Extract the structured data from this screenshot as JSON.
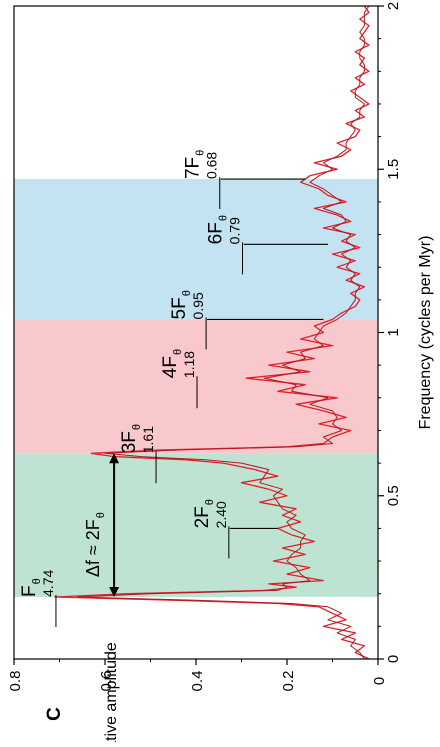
{
  "panel_label": "C",
  "chart_data": {
    "type": "line",
    "orientation": "rotated-90",
    "xlabel": "Frequency (cycles per Myr)",
    "ylabel": "Relative amplitude",
    "xlim": [
      0,
      2
    ],
    "ylim": [
      0,
      0.8
    ],
    "xticks": [
      "0",
      "0.5",
      "1",
      "1.5",
      "2"
    ],
    "xtick_values": [
      0,
      0.5,
      1,
      1.5,
      2
    ],
    "yticks": [
      "0",
      "0.2",
      "0.4",
      "0.6",
      "0.8"
    ],
    "ytick_values": [
      0,
      0.2,
      0.4,
      0.6,
      0.8
    ],
    "grid": false,
    "bands": [
      {
        "x0": 0.19,
        "x1": 0.63,
        "color": "#bfe3d3"
      },
      {
        "x0": 0.63,
        "x1": 1.04,
        "color": "#f9c8cc"
      },
      {
        "x0": 1.04,
        "x1": 1.47,
        "color": "#c3e3f3"
      }
    ],
    "series": [
      {
        "color": "#e0202a",
        "x": [
          0.0,
          0.02,
          0.04,
          0.06,
          0.08,
          0.1,
          0.12,
          0.14,
          0.16,
          0.17,
          0.18,
          0.19,
          0.2,
          0.21,
          0.22,
          0.23,
          0.24,
          0.26,
          0.28,
          0.3,
          0.32,
          0.34,
          0.36,
          0.38,
          0.4,
          0.42,
          0.44,
          0.46,
          0.48,
          0.5,
          0.52,
          0.54,
          0.56,
          0.58,
          0.6,
          0.61,
          0.62,
          0.63,
          0.64,
          0.65,
          0.66,
          0.68,
          0.7,
          0.72,
          0.74,
          0.76,
          0.78,
          0.8,
          0.82,
          0.84,
          0.86,
          0.88,
          0.9,
          0.92,
          0.94,
          0.96,
          0.98,
          1.0,
          1.02,
          1.04,
          1.06,
          1.08,
          1.1,
          1.12,
          1.14,
          1.16,
          1.18,
          1.2,
          1.22,
          1.24,
          1.26,
          1.28,
          1.3,
          1.32,
          1.34,
          1.36,
          1.38,
          1.4,
          1.42,
          1.44,
          1.46,
          1.48,
          1.5,
          1.52,
          1.54,
          1.56,
          1.58,
          1.6,
          1.62,
          1.64,
          1.66,
          1.68,
          1.7,
          1.72,
          1.74,
          1.76,
          1.78,
          1.8,
          1.82,
          1.84,
          1.86,
          1.88,
          1.9,
          1.92,
          1.94,
          1.96,
          1.98,
          2.0
        ],
        "values": [
          0.02,
          0.05,
          0.03,
          0.08,
          0.05,
          0.12,
          0.07,
          0.1,
          0.13,
          0.22,
          0.45,
          0.71,
          0.55,
          0.25,
          0.18,
          0.24,
          0.12,
          0.2,
          0.15,
          0.23,
          0.16,
          0.21,
          0.14,
          0.19,
          0.22,
          0.17,
          0.21,
          0.18,
          0.26,
          0.2,
          0.24,
          0.3,
          0.22,
          0.27,
          0.34,
          0.42,
          0.58,
          0.63,
          0.48,
          0.2,
          0.12,
          0.1,
          0.06,
          0.13,
          0.07,
          0.12,
          0.18,
          0.09,
          0.22,
          0.16,
          0.29,
          0.15,
          0.24,
          0.14,
          0.2,
          0.1,
          0.17,
          0.12,
          0.14,
          0.1,
          0.08,
          0.05,
          0.04,
          0.06,
          0.03,
          0.07,
          0.04,
          0.09,
          0.05,
          0.1,
          0.04,
          0.08,
          0.05,
          0.12,
          0.06,
          0.09,
          0.14,
          0.07,
          0.11,
          0.13,
          0.17,
          0.15,
          0.09,
          0.14,
          0.08,
          0.06,
          0.09,
          0.05,
          0.04,
          0.07,
          0.03,
          0.05,
          0.02,
          0.04,
          0.06,
          0.03,
          0.05,
          0.02,
          0.04,
          0.03,
          0.05,
          0.02,
          0.04,
          0.03,
          0.02,
          0.04,
          0.02,
          0.03
        ]
      },
      {
        "color": "#b01a22",
        "x": [
          0.0,
          0.02,
          0.04,
          0.06,
          0.08,
          0.1,
          0.12,
          0.14,
          0.16,
          0.17,
          0.18,
          0.19,
          0.2,
          0.21,
          0.22,
          0.23,
          0.24,
          0.26,
          0.28,
          0.3,
          0.32,
          0.34,
          0.36,
          0.38,
          0.4,
          0.42,
          0.44,
          0.46,
          0.48,
          0.5,
          0.52,
          0.54,
          0.56,
          0.58,
          0.6,
          0.61,
          0.62,
          0.63,
          0.64,
          0.65,
          0.66,
          0.68,
          0.7,
          0.72,
          0.74,
          0.76,
          0.78,
          0.8,
          0.82,
          0.84,
          0.86,
          0.88,
          0.9,
          0.92,
          0.94,
          0.96,
          0.98,
          1.0,
          1.02,
          1.04,
          1.06,
          1.08,
          1.1,
          1.12,
          1.14,
          1.16,
          1.18,
          1.2,
          1.22,
          1.24,
          1.26,
          1.28,
          1.3,
          1.32,
          1.34,
          1.36,
          1.38,
          1.4,
          1.42,
          1.44,
          1.46,
          1.48,
          1.5,
          1.52,
          1.54,
          1.56,
          1.58,
          1.6,
          1.62,
          1.64,
          1.66,
          1.68,
          1.7,
          1.72,
          1.74,
          1.76,
          1.78,
          1.8,
          1.82,
          1.84,
          1.86,
          1.88,
          1.9,
          1.92,
          1.94,
          1.96,
          1.98,
          2.0
        ],
        "values": [
          0.03,
          0.04,
          0.06,
          0.05,
          0.09,
          0.06,
          0.11,
          0.08,
          0.11,
          0.19,
          0.4,
          0.66,
          0.5,
          0.22,
          0.2,
          0.21,
          0.15,
          0.17,
          0.18,
          0.2,
          0.19,
          0.17,
          0.17,
          0.16,
          0.19,
          0.2,
          0.18,
          0.21,
          0.22,
          0.23,
          0.21,
          0.26,
          0.25,
          0.24,
          0.3,
          0.38,
          0.52,
          0.6,
          0.44,
          0.18,
          0.1,
          0.12,
          0.08,
          0.1,
          0.09,
          0.1,
          0.15,
          0.11,
          0.19,
          0.18,
          0.25,
          0.17,
          0.21,
          0.16,
          0.17,
          0.12,
          0.14,
          0.13,
          0.12,
          0.09,
          0.07,
          0.06,
          0.05,
          0.05,
          0.04,
          0.06,
          0.05,
          0.07,
          0.06,
          0.08,
          0.05,
          0.07,
          0.06,
          0.1,
          0.07,
          0.08,
          0.12,
          0.08,
          0.1,
          0.12,
          0.15,
          0.13,
          0.1,
          0.12,
          0.09,
          0.07,
          0.07,
          0.06,
          0.05,
          0.06,
          0.04,
          0.04,
          0.03,
          0.05,
          0.05,
          0.04,
          0.04,
          0.03,
          0.03,
          0.04,
          0.04,
          0.03,
          0.03,
          0.04,
          0.03,
          0.03,
          0.03,
          0.02
        ]
      }
    ],
    "annotations": [
      {
        "name": "F-theta",
        "main": "F",
        "sub": "θ",
        "value": "4.74",
        "x": 0.19,
        "y": 0.71,
        "tip": null
      },
      {
        "name": "2F-theta",
        "main": "2F",
        "sub": "θ",
        "value": "2.40",
        "x": 0.4,
        "y": 0.33,
        "tip": 0.22
      },
      {
        "name": "3F-theta",
        "main": "3F",
        "sub": "θ",
        "value": "1.61",
        "x": 0.63,
        "y": 0.49,
        "tip": null
      },
      {
        "name": "4F-theta",
        "main": "4F",
        "sub": "θ",
        "value": "1.18",
        "x": 0.86,
        "y": 0.4,
        "tip": null
      },
      {
        "name": "5F-theta",
        "main": "5F",
        "sub": "θ",
        "value": "0.95",
        "x": 1.04,
        "y": 0.38,
        "tip": 0.12
      },
      {
        "name": "6F-theta",
        "main": "6F",
        "sub": "θ",
        "value": "0.79",
        "x": 1.27,
        "y": 0.3,
        "tip": 0.11
      },
      {
        "name": "7F-theta",
        "main": "7F",
        "sub": "θ",
        "value": "0.68",
        "x": 1.47,
        "y": 0.35,
        "tip": 0.16
      }
    ],
    "delta_annotation": {
      "text": "Δf ≈ 2F",
      "sub": "θ",
      "x0": 0.19,
      "x1": 0.63,
      "y": 0.58
    }
  }
}
